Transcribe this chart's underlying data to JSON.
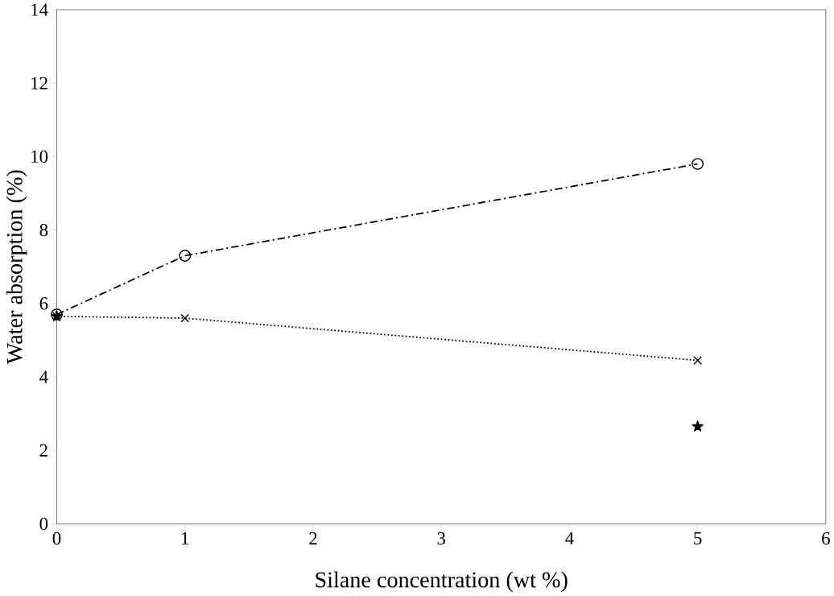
{
  "chart_data": {
    "type": "line",
    "xlabel": "Silane concentration (wt %)",
    "ylabel": "Water absorption (%)",
    "xlim": [
      0,
      6
    ],
    "xticks": [
      0,
      1,
      2,
      3,
      4,
      5,
      6
    ],
    "ylim": [
      0,
      14
    ],
    "yticks": [
      0,
      2,
      4,
      6,
      8,
      10,
      12,
      14
    ],
    "series": [
      {
        "color": "#000000",
        "x": [
          0,
          1,
          5
        ],
        "values": [
          5.7,
          7.3,
          9.8
        ],
        "marker": "circle",
        "line_style": "dashdot"
      },
      {
        "color": "#000000",
        "x": [
          0,
          1,
          5
        ],
        "values": [
          5.65,
          5.6,
          4.45
        ],
        "marker": "cross",
        "line_style": "dotted"
      },
      {
        "type": "scatter",
        "color": "#000000",
        "x": [
          0,
          5
        ],
        "values": [
          5.65,
          2.65
        ],
        "marker": "star"
      }
    ]
  }
}
